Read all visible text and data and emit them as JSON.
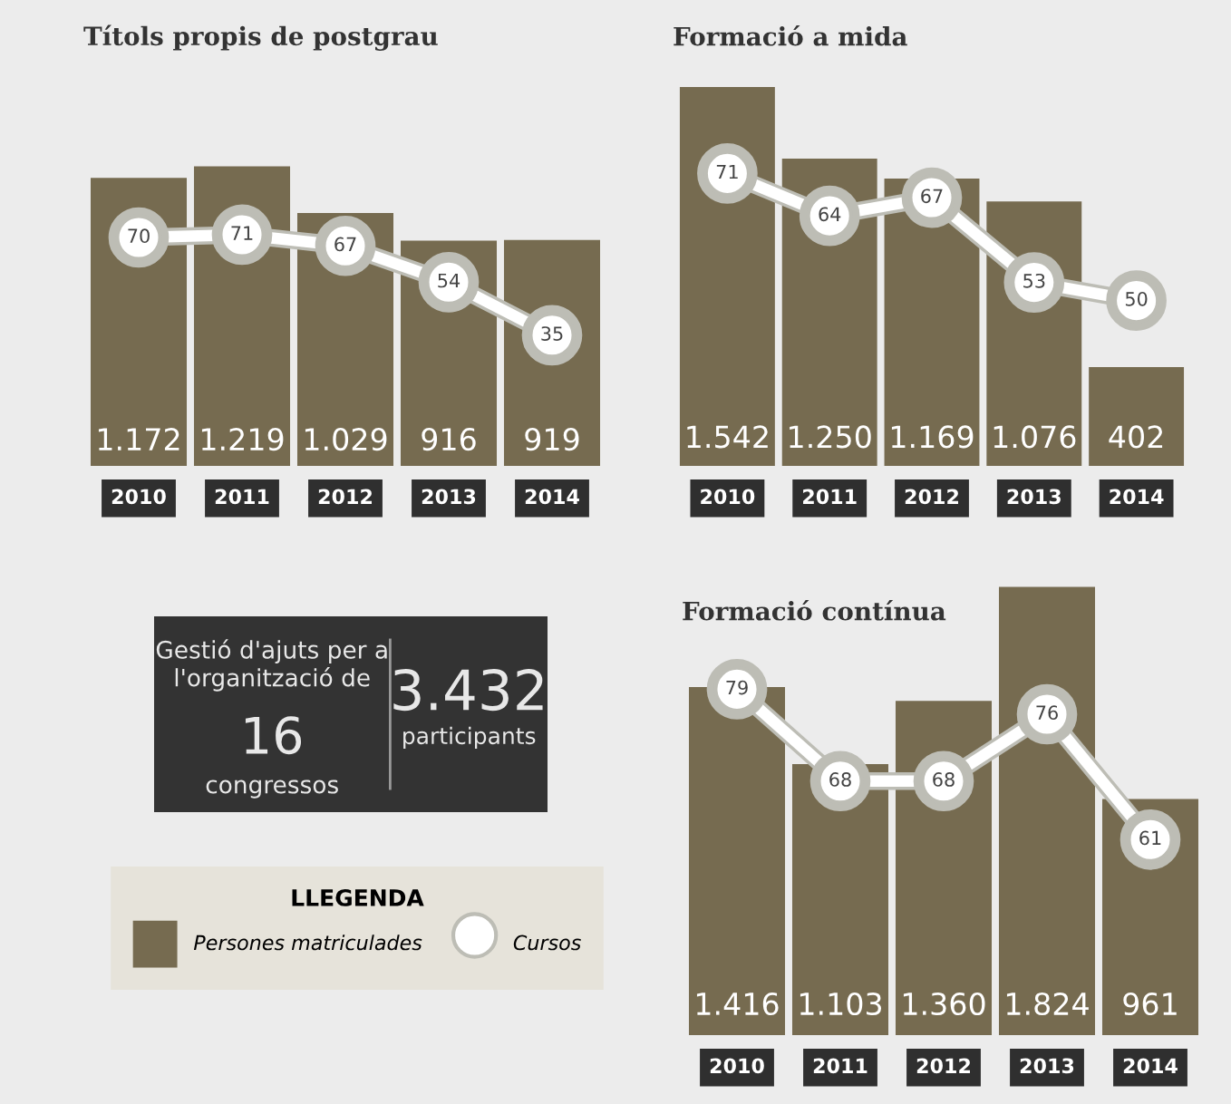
{
  "chart_data": [
    {
      "type": "bar",
      "title": "Títols propis de postgrau",
      "categories": [
        "2010",
        "2011",
        "2012",
        "2013",
        "2014"
      ],
      "tick_labels": "x",
      "marker": "circle",
      "legend": "bottom left",
      "legend_title": "LLEGENDA",
      "series": [
        {
          "name": "Persones matriculades",
          "type": "bar",
          "color": "#766b50",
          "values": [
            1172,
            1219,
            1029,
            916,
            919
          ],
          "value_labels": [
            "1.172",
            "1.219",
            "1.029",
            "916",
            "919"
          ]
        },
        {
          "name": "Cursos",
          "type": "line",
          "axis": "y2",
          "color": "#ffffff",
          "values": [
            70,
            71,
            67,
            54,
            35
          ],
          "data_labels": true
        }
      ]
    },
    {
      "type": "bar",
      "title": "Formació a mida",
      "categories": [
        "2010",
        "2011",
        "2012",
        "2013",
        "2014"
      ],
      "tick_labels": "x",
      "marker": "circle",
      "series": [
        {
          "type": "bar",
          "color": "#766b50",
          "values": [
            1542,
            1250,
            1169,
            1076,
            402
          ],
          "value_labels": [
            "1.542",
            "1.250",
            "1.169",
            "1.076",
            "402"
          ]
        },
        {
          "type": "line",
          "axis": "y2",
          "color": "#ffffff",
          "values": [
            71,
            64,
            67,
            53,
            50
          ],
          "data_labels": true
        }
      ]
    },
    {
      "type": "other",
      "annotations": [
        "Gestió d'ajuts per a l'organització de",
        "16",
        "congressos",
        "3.432",
        "participants"
      ]
    },
    {
      "type": "bar",
      "title": "Formació contínua",
      "categories": [
        "2010",
        "2011",
        "2012",
        "2013",
        "2014"
      ],
      "tick_labels": "x",
      "marker": "circle",
      "series": [
        {
          "type": "bar",
          "color": "#766b50",
          "values": [
            1416,
            1103,
            1360,
            1824,
            961
          ],
          "value_labels": [
            "1.416",
            "1.103",
            "1.360",
            "1.824",
            "961"
          ]
        },
        {
          "type": "line",
          "axis": "y2",
          "color": "#ffffff",
          "values": [
            79,
            68,
            68,
            76,
            61
          ],
          "data_labels": true
        }
      ]
    }
  ]
}
